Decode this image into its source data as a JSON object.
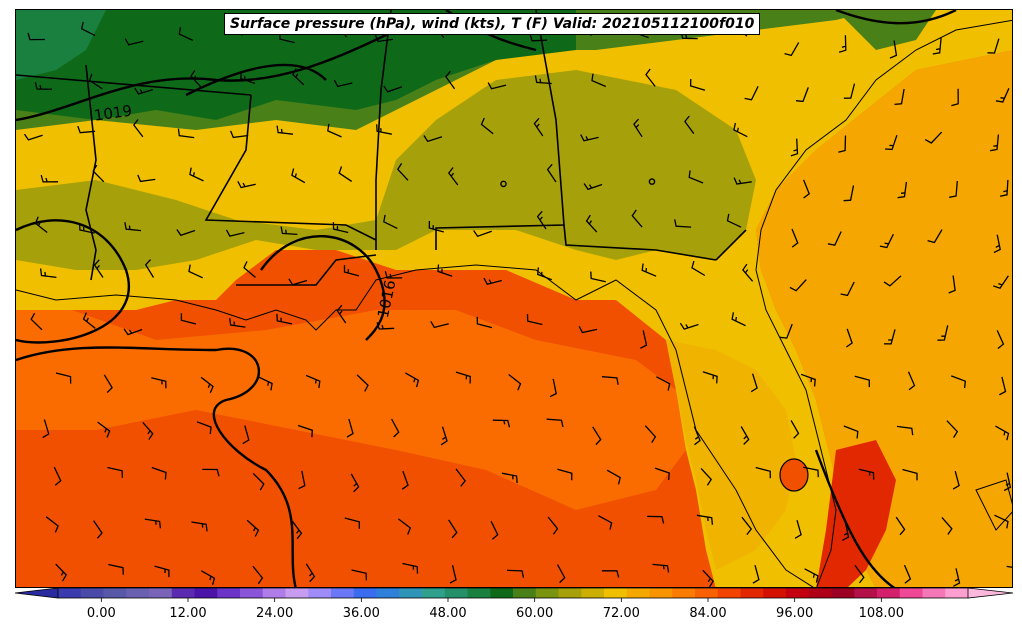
{
  "title": "Surface pressure (hPa), wind (kts), T (F) Valid: 202105112100f010",
  "isobar_labels": [
    "1019",
    "1016"
  ],
  "colorbar": {
    "ticks": [
      "0.00",
      "12.00",
      "24.00",
      "36.00",
      "48.00",
      "60.00",
      "72.00",
      "84.00",
      "96.00",
      "108.00"
    ],
    "min": -6,
    "max": 120,
    "step": 3,
    "colors": [
      "#3b3bb0",
      "#4a4aa8",
      "#5858a8",
      "#6a60b0",
      "#7a64b8",
      "#5a2ab0",
      "#4a14a8",
      "#6a34c8",
      "#8a54d8",
      "#b07ce8",
      "#c89cf0",
      "#a08cf8",
      "#6a78f8",
      "#3a6cf0",
      "#2e80d8",
      "#2e94b8",
      "#2ea08c",
      "#24906a",
      "#1a8040",
      "#0e6a18",
      "#4a8018",
      "#7a9410",
      "#a6a00a",
      "#ccae04",
      "#f0c000",
      "#f4a800",
      "#f89400",
      "#fa7c00",
      "#f86000",
      "#f24400",
      "#e22800",
      "#d41000",
      "#c40010",
      "#b00018",
      "#9c0022",
      "#b4104a",
      "#d4206c",
      "#ee4896",
      "#f478b8",
      "#fc9ed0"
    ]
  },
  "chart_data": {
    "type": "heatmap",
    "title": "Surface pressure (hPa), wind (kts), T (F) Valid: 202105112100f010",
    "variable": "T (F)",
    "colorbar_range": [
      -6,
      120
    ],
    "colorbar_ticks": [
      0,
      12,
      24,
      36,
      48,
      60,
      72,
      84,
      96,
      108
    ],
    "isobars_hpa": [
      1019,
      1016
    ],
    "valid_time": "202105112100f010"
  }
}
